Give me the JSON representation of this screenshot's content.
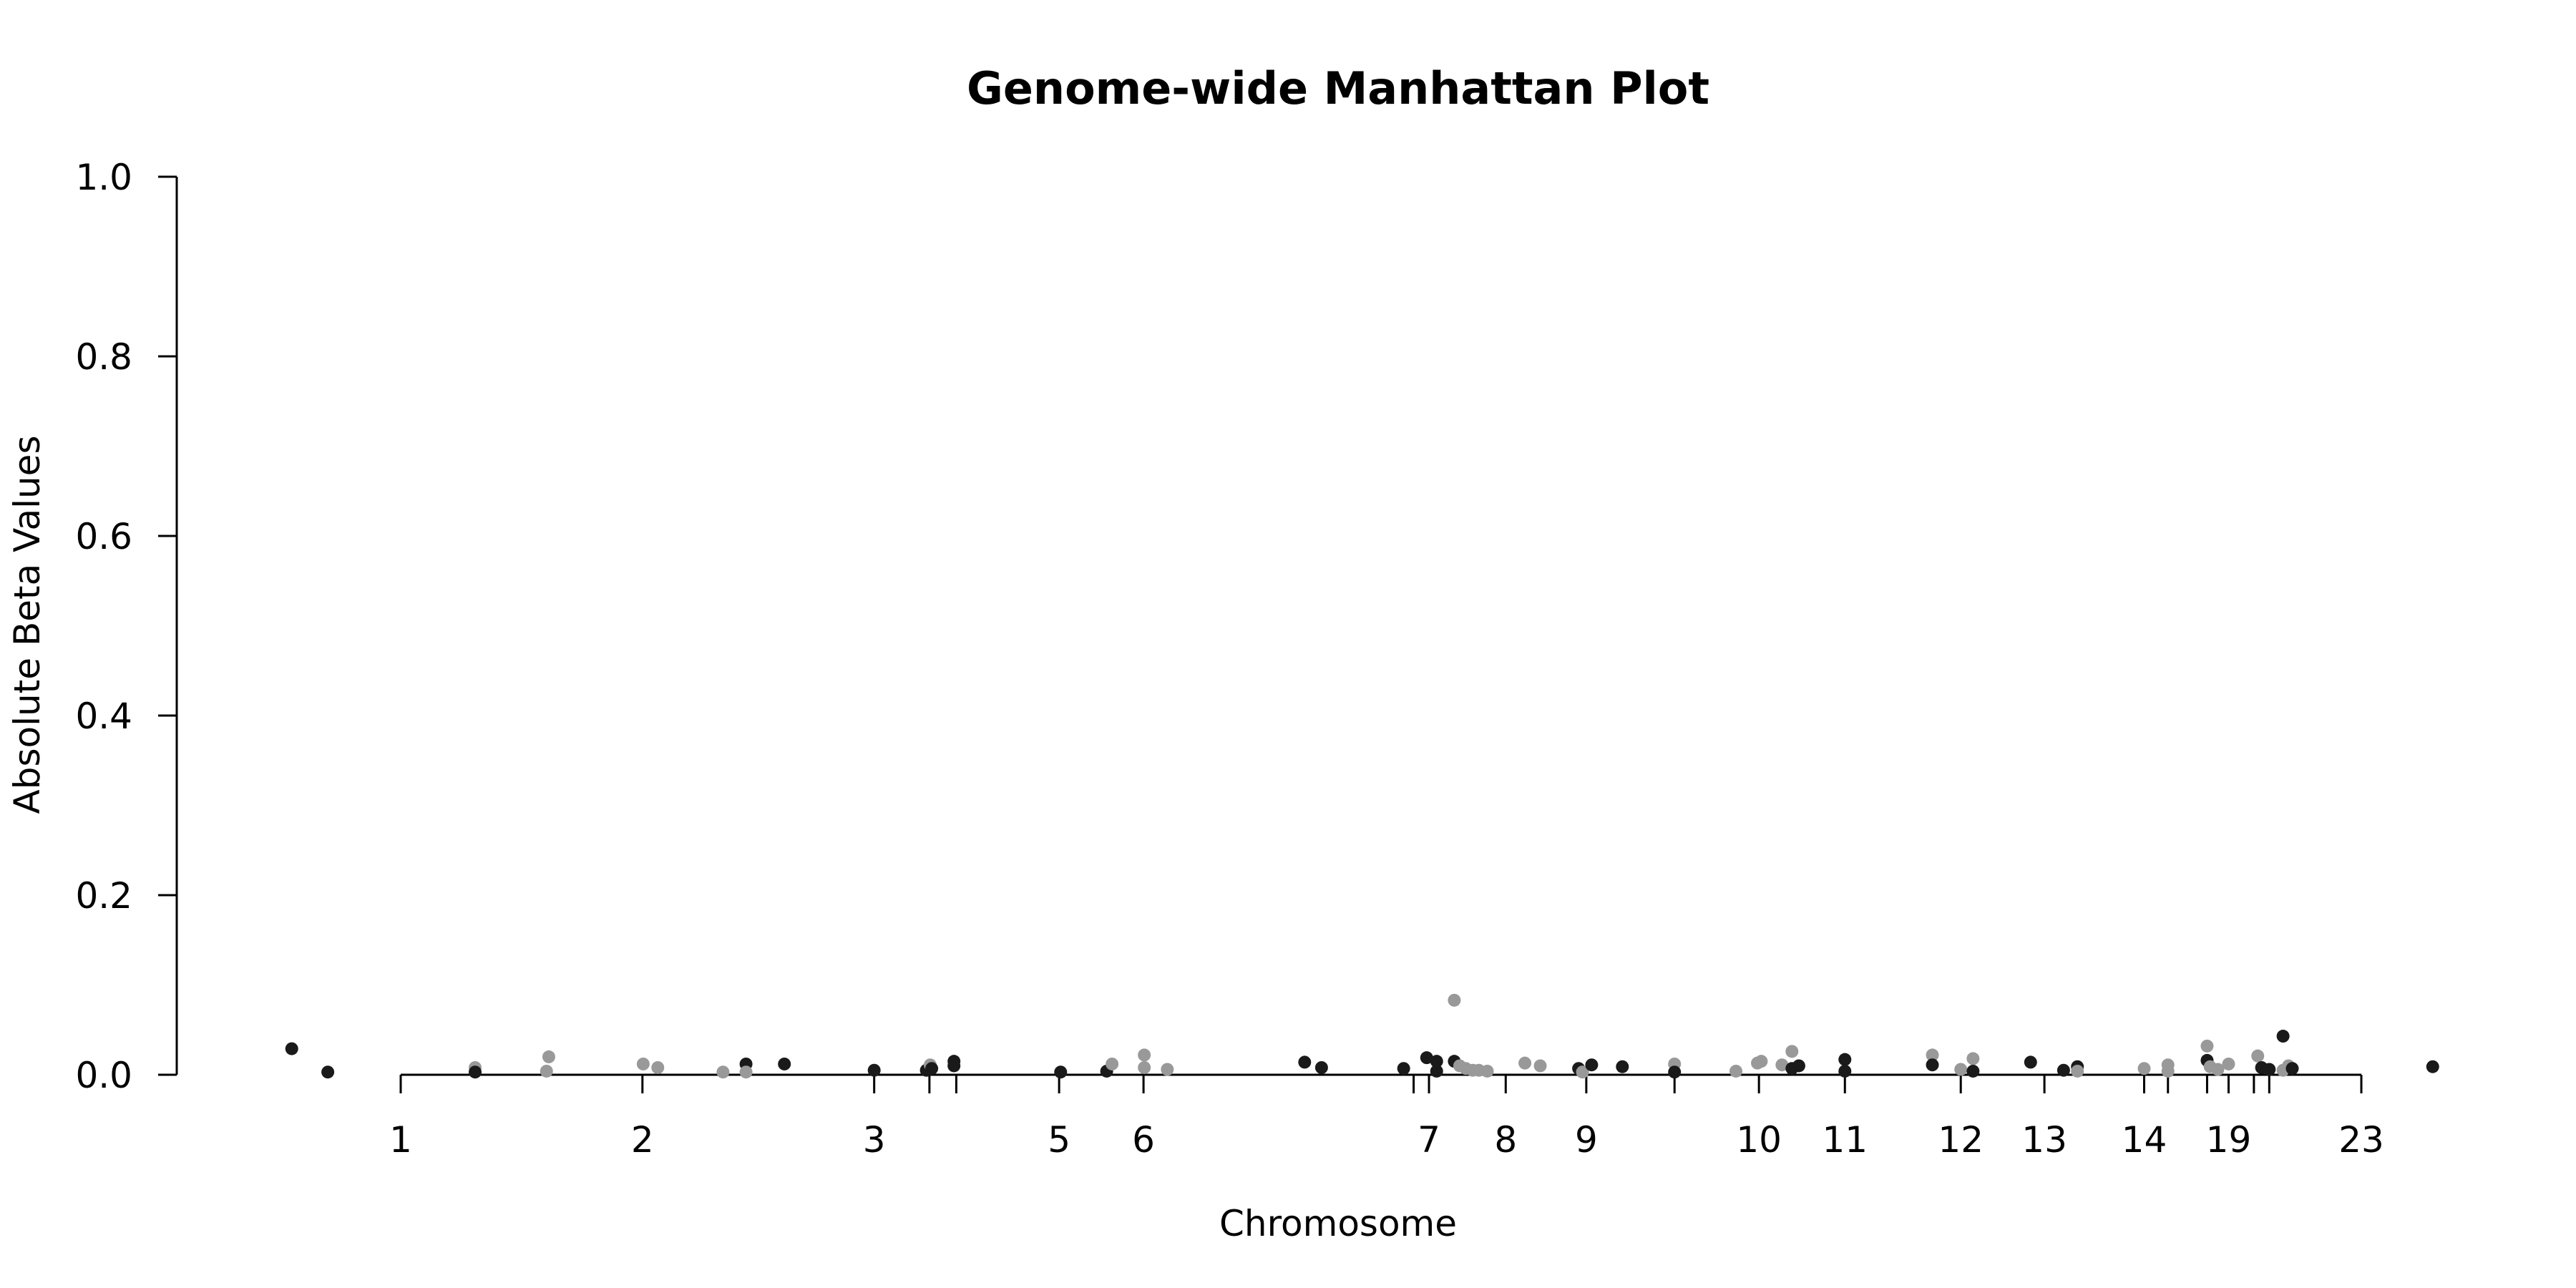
{
  "chart_data": {
    "type": "scatter",
    "title": "Genome-wide Manhattan Plot",
    "xlabel": "Chromosome",
    "ylabel": "Absolute Beta Values",
    "ylim": [
      0,
      1
    ],
    "y_ticks": [
      "0.0",
      "0.2",
      "0.4",
      "0.6",
      "0.8",
      "1.0"
    ],
    "y_tick_values": [
      0,
      0.2,
      0.4,
      0.6,
      0.8,
      1.0
    ],
    "x_ticks": [
      {
        "label": "1",
        "pos": 0.0
      },
      {
        "label": "2",
        "pos": 3.15
      },
      {
        "label": "3",
        "pos": 6.17
      },
      {
        "label": "",
        "pos": 6.89
      },
      {
        "label": "",
        "pos": 7.24
      },
      {
        "label": "5",
        "pos": 8.58
      },
      {
        "label": "6",
        "pos": 9.68
      },
      {
        "label": "",
        "pos": 13.2
      },
      {
        "label": "7",
        "pos": 13.4
      },
      {
        "label": "8",
        "pos": 14.4
      },
      {
        "label": "9",
        "pos": 15.45
      },
      {
        "label": "",
        "pos": 16.6
      },
      {
        "label": "10",
        "pos": 17.7
      },
      {
        "label": "11",
        "pos": 18.82
      },
      {
        "label": "12",
        "pos": 20.33
      },
      {
        "label": "13",
        "pos": 21.42
      },
      {
        "label": "14",
        "pos": 22.72
      },
      {
        "label": "",
        "pos": 23.03
      },
      {
        "label": "",
        "pos": 23.54
      },
      {
        "label": "19",
        "pos": 23.82
      },
      {
        "label": "",
        "pos": 24.15
      },
      {
        "label": "",
        "pos": 24.35
      },
      {
        "label": "23",
        "pos": 25.55
      }
    ],
    "grid": false,
    "legend": "none",
    "colors": {
      "dark": "#1a1a1a",
      "light": "#999999"
    },
    "points": [
      {
        "x": -1.42,
        "y": 0.029,
        "c": "dark"
      },
      {
        "x": -0.95,
        "y": 0.003,
        "c": "dark"
      },
      {
        "x": 0.97,
        "y": 0.008,
        "c": "light"
      },
      {
        "x": 0.97,
        "y": 0.003,
        "c": "dark"
      },
      {
        "x": 1.9,
        "y": 0.004,
        "c": "light"
      },
      {
        "x": 1.93,
        "y": 0.02,
        "c": "light"
      },
      {
        "x": 3.16,
        "y": 0.012,
        "c": "light"
      },
      {
        "x": 3.35,
        "y": 0.008,
        "c": "light"
      },
      {
        "x": 4.2,
        "y": 0.003,
        "c": "light"
      },
      {
        "x": 4.5,
        "y": 0.012,
        "c": "dark"
      },
      {
        "x": 4.5,
        "y": 0.003,
        "c": "light"
      },
      {
        "x": 5.0,
        "y": 0.012,
        "c": "dark"
      },
      {
        "x": 6.17,
        "y": 0.005,
        "c": "dark"
      },
      {
        "x": 6.85,
        "y": 0.005,
        "c": "dark"
      },
      {
        "x": 6.9,
        "y": 0.011,
        "c": "light"
      },
      {
        "x": 6.92,
        "y": 0.007,
        "c": "dark"
      },
      {
        "x": 7.21,
        "y": 0.015,
        "c": "dark"
      },
      {
        "x": 7.21,
        "y": 0.01,
        "c": "dark"
      },
      {
        "x": 8.6,
        "y": 0.003,
        "c": "dark"
      },
      {
        "x": 9.2,
        "y": 0.004,
        "c": "dark"
      },
      {
        "x": 9.27,
        "y": 0.012,
        "c": "light"
      },
      {
        "x": 9.69,
        "y": 0.022,
        "c": "light"
      },
      {
        "x": 9.69,
        "y": 0.008,
        "c": "light"
      },
      {
        "x": 9.99,
        "y": 0.006,
        "c": "light"
      },
      {
        "x": 11.78,
        "y": 0.014,
        "c": "dark"
      },
      {
        "x": 12.0,
        "y": 0.008,
        "c": "dark"
      },
      {
        "x": 13.07,
        "y": 0.007,
        "c": "dark"
      },
      {
        "x": 13.37,
        "y": 0.019,
        "c": "dark"
      },
      {
        "x": 13.5,
        "y": 0.015,
        "c": "dark"
      },
      {
        "x": 13.5,
        "y": 0.004,
        "c": "dark"
      },
      {
        "x": 13.73,
        "y": 0.083,
        "c": "light"
      },
      {
        "x": 13.73,
        "y": 0.015,
        "c": "dark"
      },
      {
        "x": 13.8,
        "y": 0.01,
        "c": "light"
      },
      {
        "x": 13.88,
        "y": 0.007,
        "c": "light"
      },
      {
        "x": 13.97,
        "y": 0.005,
        "c": "light"
      },
      {
        "x": 14.05,
        "y": 0.005,
        "c": "light"
      },
      {
        "x": 14.16,
        "y": 0.004,
        "c": "light"
      },
      {
        "x": 14.65,
        "y": 0.013,
        "c": "light"
      },
      {
        "x": 14.85,
        "y": 0.01,
        "c": "light"
      },
      {
        "x": 15.35,
        "y": 0.007,
        "c": "dark"
      },
      {
        "x": 15.4,
        "y": 0.003,
        "c": "light"
      },
      {
        "x": 15.52,
        "y": 0.011,
        "c": "dark"
      },
      {
        "x": 15.92,
        "y": 0.009,
        "c": "dark"
      },
      {
        "x": 16.6,
        "y": 0.012,
        "c": "light"
      },
      {
        "x": 16.6,
        "y": 0.003,
        "c": "dark"
      },
      {
        "x": 17.4,
        "y": 0.004,
        "c": "light"
      },
      {
        "x": 17.68,
        "y": 0.013,
        "c": "light"
      },
      {
        "x": 17.73,
        "y": 0.015,
        "c": "light"
      },
      {
        "x": 18.0,
        "y": 0.011,
        "c": "light"
      },
      {
        "x": 18.13,
        "y": 0.026,
        "c": "light"
      },
      {
        "x": 18.13,
        "y": 0.007,
        "c": "dark"
      },
      {
        "x": 18.22,
        "y": 0.01,
        "c": "dark"
      },
      {
        "x": 18.82,
        "y": 0.017,
        "c": "dark"
      },
      {
        "x": 18.82,
        "y": 0.004,
        "c": "dark"
      },
      {
        "x": 19.96,
        "y": 0.022,
        "c": "light"
      },
      {
        "x": 19.96,
        "y": 0.011,
        "c": "dark"
      },
      {
        "x": 20.33,
        "y": 0.006,
        "c": "light"
      },
      {
        "x": 20.49,
        "y": 0.018,
        "c": "light"
      },
      {
        "x": 20.49,
        "y": 0.004,
        "c": "dark"
      },
      {
        "x": 21.24,
        "y": 0.014,
        "c": "dark"
      },
      {
        "x": 21.67,
        "y": 0.005,
        "c": "dark"
      },
      {
        "x": 21.85,
        "y": 0.009,
        "c": "dark"
      },
      {
        "x": 21.85,
        "y": 0.004,
        "c": "light"
      },
      {
        "x": 23.03,
        "y": 0.011,
        "c": "light"
      },
      {
        "x": 22.72,
        "y": 0.007,
        "c": "light"
      },
      {
        "x": 23.03,
        "y": 0.004,
        "c": "light"
      },
      {
        "x": 23.54,
        "y": 0.032,
        "c": "light"
      },
      {
        "x": 23.54,
        "y": 0.016,
        "c": "dark"
      },
      {
        "x": 23.58,
        "y": 0.009,
        "c": "light"
      },
      {
        "x": 23.68,
        "y": 0.006,
        "c": "light"
      },
      {
        "x": 23.82,
        "y": 0.012,
        "c": "light"
      },
      {
        "x": 24.2,
        "y": 0.021,
        "c": "light"
      },
      {
        "x": 24.25,
        "y": 0.008,
        "c": "dark"
      },
      {
        "x": 24.35,
        "y": 0.006,
        "c": "dark"
      },
      {
        "x": 24.53,
        "y": 0.043,
        "c": "dark"
      },
      {
        "x": 24.53,
        "y": 0.005,
        "c": "light"
      },
      {
        "x": 24.6,
        "y": 0.01,
        "c": "light"
      },
      {
        "x": 24.65,
        "y": 0.007,
        "c": "dark"
      },
      {
        "x": 26.48,
        "y": 0.009,
        "c": "dark"
      }
    ]
  }
}
